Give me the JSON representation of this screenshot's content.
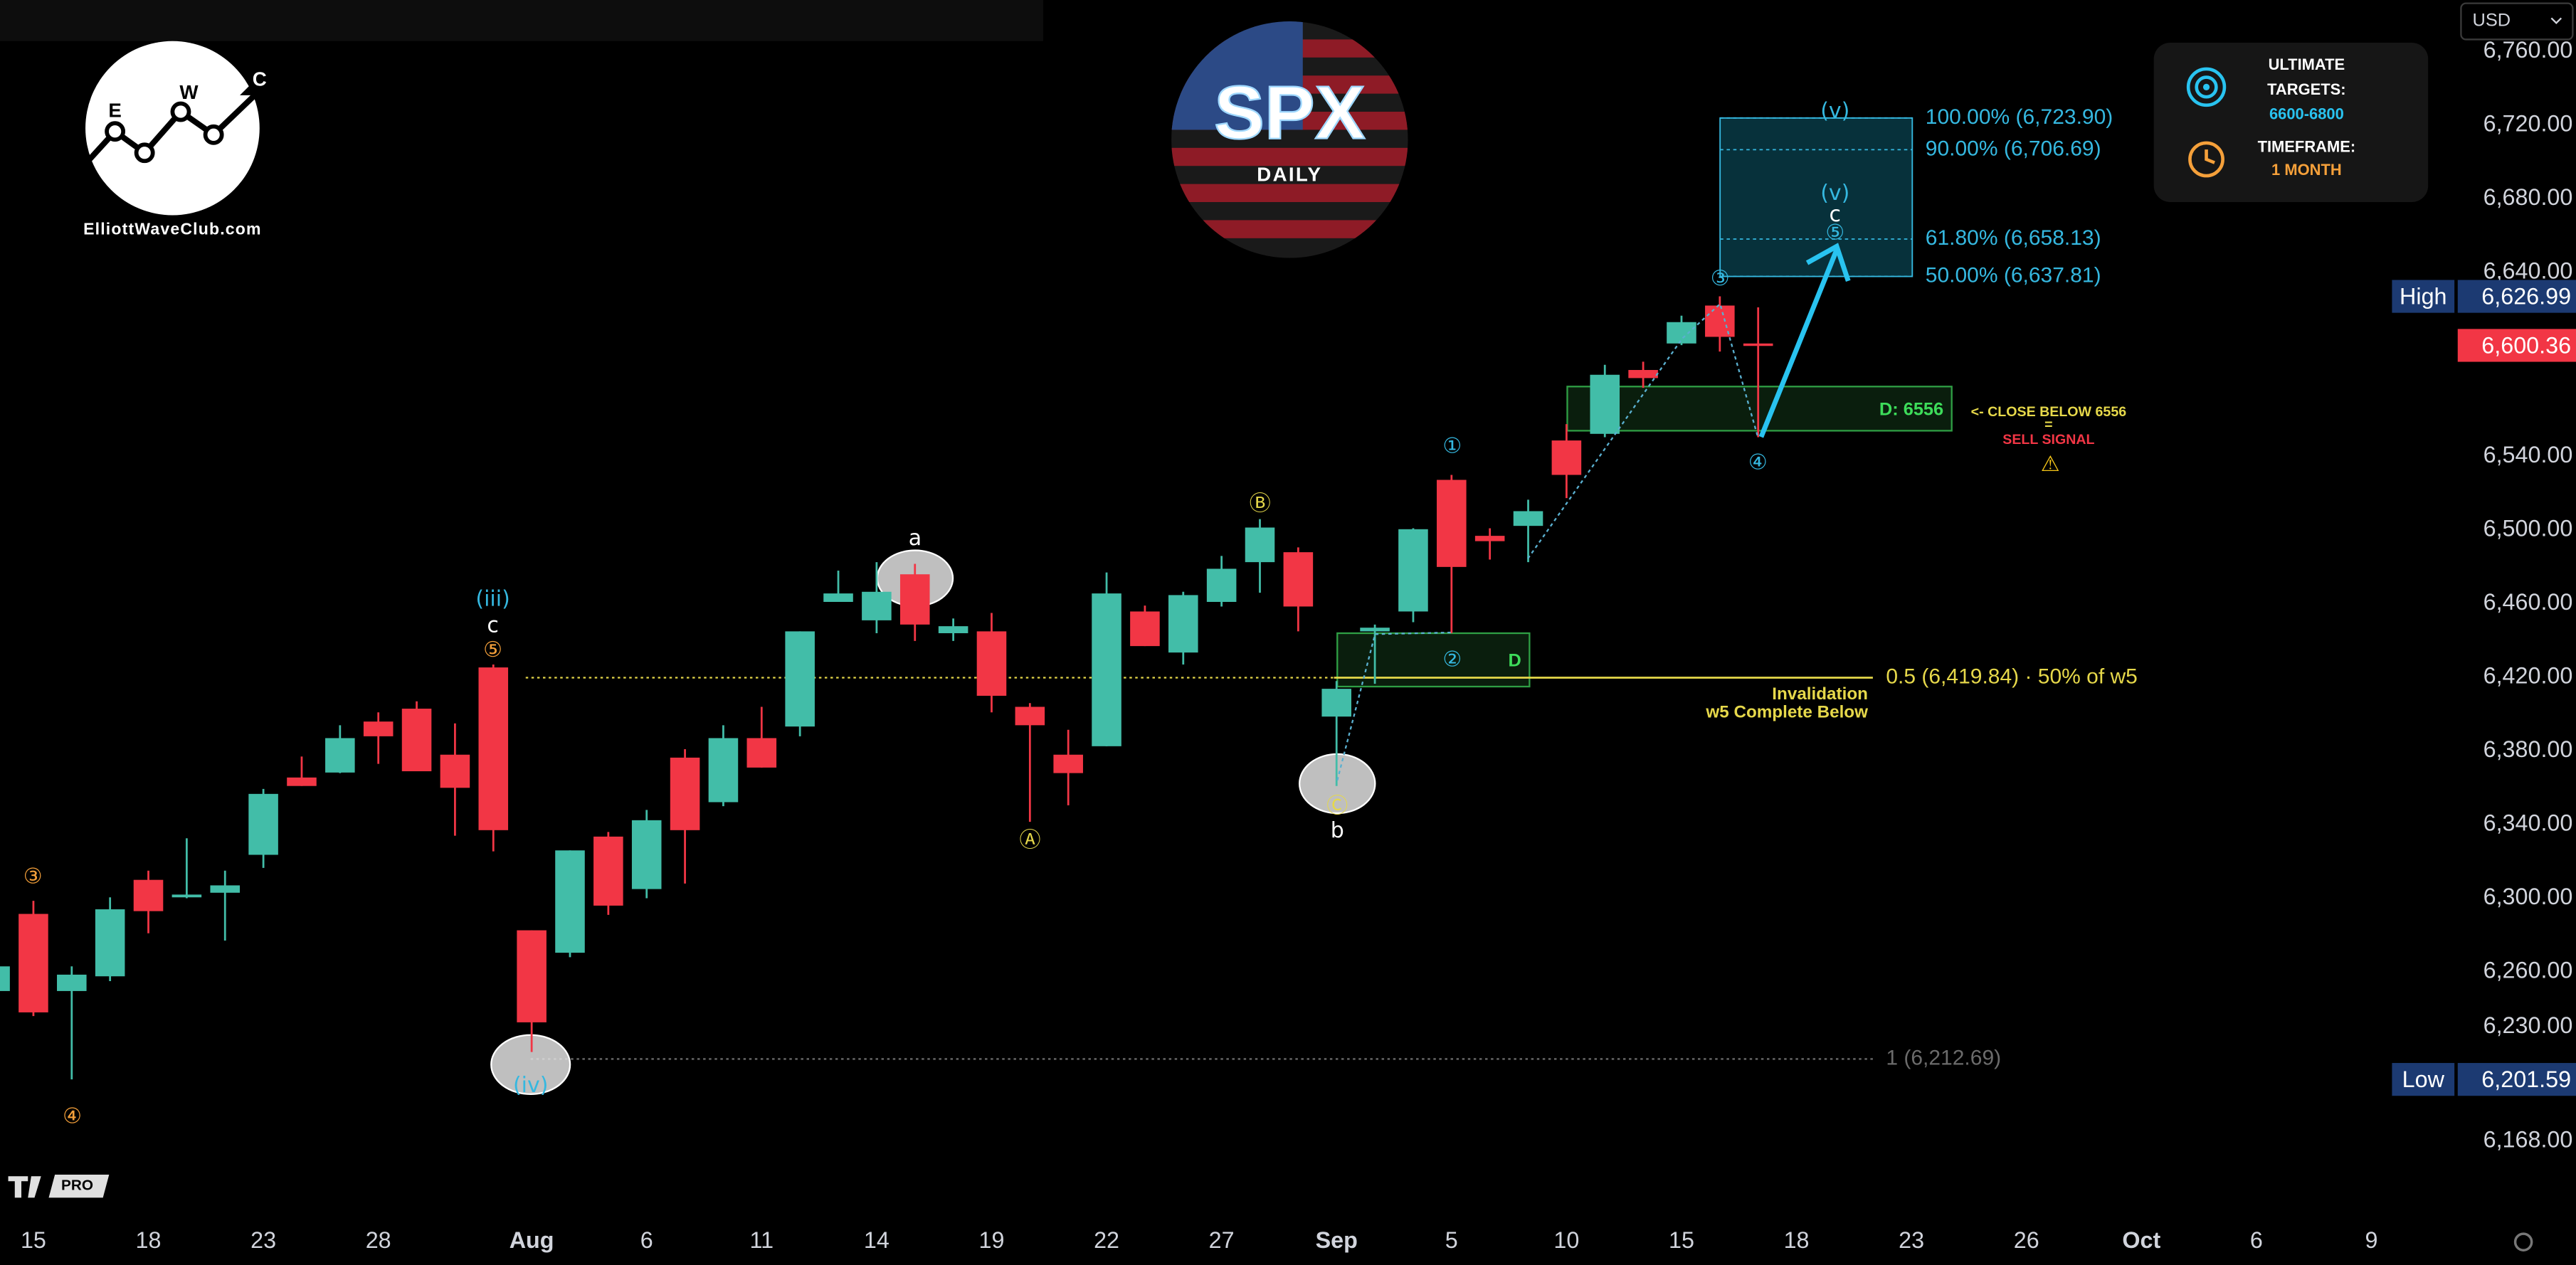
{
  "logo": {
    "letters": [
      "E",
      "W",
      "C"
    ],
    "site": "ElliottWaveClub.com"
  },
  "badge": {
    "title": "SPX",
    "subtitle": "DAILY"
  },
  "info": {
    "targets_label": [
      "ULTIMATE",
      "TARGETS:"
    ],
    "targets": "6600-6800",
    "timeframe_label": "TIMEFRAME:",
    "timeframe": "1 MONTH"
  },
  "currency": "USD",
  "platform_badge": "PRO",
  "chart_data": {
    "type": "candlestick",
    "categories": [
      null,
      "15",
      null,
      null,
      "18",
      null,
      null,
      "23",
      null,
      null,
      "28",
      null,
      null,
      null,
      "Aug",
      null,
      null,
      "6",
      null,
      null,
      "11",
      null,
      null,
      "14",
      null,
      null,
      "19",
      null,
      null,
      "22",
      null,
      null,
      "27",
      null,
      null,
      "Sep",
      null,
      null,
      "5",
      null,
      null,
      "10",
      null,
      null,
      "15",
      null,
      null,
      "18",
      null,
      null,
      "23",
      null,
      null,
      "26",
      null,
      null,
      "Oct",
      null,
      null,
      "6",
      null,
      null,
      "9"
    ],
    "open": [
      6249.6,
      6291.5,
      6249.6,
      6257.6,
      6310.0,
      6300.5,
      6303.0,
      6323.6,
      6365.6,
      6368.3,
      6396.0,
      6403.0,
      6378.0,
      6425.4,
      6282.6,
      6270.4,
      6333.5,
      6305.0,
      6376.4,
      6352.2,
      6387.0,
      6393.3,
      6461.0,
      6451.0,
      6476.0,
      6444.0,
      6445.0,
      6404.0,
      6378.0,
      6382.6,
      6455.8,
      6433.5,
      6461.0,
      6482.6,
      6488.0,
      6398.7,
      6445.0,
      6455.8,
      6527.3,
      6496.9,
      6502.3,
      6548.7,
      6552.3,
      6587.0,
      6601.4,
      6622.0,
      6601.4,
      null,
      null,
      null,
      null,
      null,
      null,
      null,
      null,
      null,
      null,
      null,
      null,
      null,
      null,
      null,
      null
    ],
    "high": [
      6265.0,
      6298.6,
      6263.0,
      6300.5,
      6315.0,
      6332.6,
      6315.0,
      6359.4,
      6377.0,
      6394.0,
      6401.0,
      6407.0,
      6395.0,
      6427.0,
      6282.6,
      6326.0,
      6336.0,
      6348.0,
      6381.0,
      6394.0,
      6404.0,
      6445.0,
      6478.0,
      6482.6,
      6481.7,
      6452.0,
      6455.0,
      6406.0,
      6391.5,
      6477.0,
      6459.0,
      6466.5,
      6486.0,
      6506.0,
      6490.6,
      6418.0,
      6448.7,
      6501.0,
      6530.0,
      6501.0,
      6516.5,
      6557.6,
      6589.8,
      6591.5,
      6616.5,
      6626.99,
      6621.0,
      null,
      null,
      null,
      null,
      null,
      null,
      null,
      null,
      null,
      null,
      null,
      null,
      null,
      null,
      null,
      null
    ],
    "low": [
      6248.0,
      6236.0,
      6201.59,
      6255.0,
      6281.0,
      6300.0,
      6277.0,
      6316.5,
      6361.0,
      6368.0,
      6373.0,
      6369.0,
      6334.0,
      6325.5,
      6216.5,
      6268.0,
      6291.0,
      6300.0,
      6308.0,
      6350.0,
      6371.0,
      6388.0,
      6461.0,
      6444.0,
      6439.8,
      6439.8,
      6401.0,
      6341.5,
      6350.5,
      6382.6,
      6437.0,
      6427.0,
      6458.5,
      6466.0,
      6445.0,
      6361.0,
      6416.5,
      6450.0,
      6444.0,
      6484.0,
      6482.6,
      6517.4,
      6550.5,
      6577.3,
      6600.5,
      6597.0,
      6550.5,
      null,
      null,
      null,
      null,
      null,
      null,
      null,
      null,
      null,
      null,
      null,
      null,
      null,
      null,
      null,
      null
    ],
    "close": [
      6263.0,
      6238.0,
      6258.5,
      6294.0,
      6293.0,
      6302.0,
      6307.0,
      6356.7,
      6361.0,
      6387.0,
      6388.0,
      6369.0,
      6360.0,
      6337.0,
      6232.6,
      6326.0,
      6296.0,
      6342.4,
      6337.0,
      6387.0,
      6371.0,
      6445.0,
      6465.6,
      6466.5,
      6448.7,
      6447.8,
      6410.0,
      6394.0,
      6368.0,
      6465.6,
      6437.0,
      6464.7,
      6479.0,
      6501.4,
      6458.5,
      6413.8,
      6447.0,
      6500.5,
      6480.0,
      6494.0,
      6510.3,
      6530.0,
      6584.4,
      6582.6,
      6613.0,
      6605.0,
      6600.36,
      null,
      null,
      null,
      null,
      null,
      null,
      null,
      null,
      null,
      null,
      null,
      null,
      null,
      null,
      null,
      null
    ],
    "up_color": "#42bda8",
    "down_color": "#f23645",
    "ylim": [
      6132,
      6788
    ],
    "yticks": [
      {
        "value": 6168,
        "label": "6,168.00"
      },
      {
        "value": 6230,
        "label": "6,230.00"
      },
      {
        "value": 6260,
        "label": "6,260.00"
      },
      {
        "value": 6300,
        "label": "6,300.00"
      },
      {
        "value": 6340,
        "label": "6,340.00"
      },
      {
        "value": 6380,
        "label": "6,380.00"
      },
      {
        "value": 6420,
        "label": "6,420.00"
      },
      {
        "value": 6460,
        "label": "6,460.00"
      },
      {
        "value": 6500,
        "label": "6,500.00"
      },
      {
        "value": 6540,
        "label": "6,540.00"
      },
      {
        "value": 6640,
        "label": "6,640.00"
      },
      {
        "value": 6680,
        "label": "6,680.00"
      },
      {
        "value": 6720,
        "label": "6,720.00"
      },
      {
        "value": 6760,
        "label": "6,760.00"
      }
    ],
    "grid": false,
    "price_tags": {
      "names": [
        "High",
        null,
        "Low"
      ],
      "values": [
        6626.99,
        6600.36,
        6201.59
      ],
      "value_labels": [
        "6,626.99",
        "6,600.36",
        "6,201.59"
      ],
      "colors": [
        "#1c3a72",
        "#f23645",
        "#1c3a72"
      ]
    },
    "target_levels": [
      {
        "value": 6723.9,
        "label": "100.00% (6,723.90)"
      },
      {
        "value": 6706.69,
        "label": "90.00% (6,706.69)"
      },
      {
        "value": 6658.13,
        "label": "61.80% (6,658.13)"
      },
      {
        "value": 6637.81,
        "label": "50.00% (6,637.81)"
      }
    ],
    "target_color": "#35b8e0",
    "zones": [
      {
        "label": "D: 6556",
        "low": 6554,
        "high": 6578
      },
      {
        "label": "D",
        "low": 6415,
        "high": 6444
      }
    ],
    "zone_color": "#2f9e44",
    "levels": [
      {
        "value": 6419.84,
        "label": "0.5 (6,419.84) · 50% of w5",
        "color": "#e6d84a"
      },
      {
        "value": 6212.69,
        "label": "1 (6,212.69)",
        "color": "#6b6b6b"
      }
    ],
    "invalidation_note": [
      "Invalidation",
      "w5 Complete Below"
    ],
    "sell_note": {
      "lines": [
        "<- CLOSE BELOW 6556",
        "="
      ],
      "signal": "SELL SIGNAL",
      "icon": "⚠"
    },
    "wave_labels": [
      {
        "text": "③",
        "color": "#f5a03a"
      },
      {
        "text": "④",
        "color": "#f5a03a"
      },
      {
        "text": "(iii)",
        "color": "#35b8e0"
      },
      {
        "text": "c",
        "color": "#ffffff"
      },
      {
        "text": "⑤",
        "color": "#f5a03a"
      },
      {
        "text": "(iv)",
        "color": "#35b8e0"
      },
      {
        "text": "a",
        "color": "#ffffff"
      },
      {
        "text": "Ⓐ",
        "color": "#e6d84a"
      },
      {
        "text": "Ⓑ",
        "color": "#e6d84a"
      },
      {
        "text": "Ⓒ",
        "color": "#e6d84a"
      },
      {
        "text": "b",
        "color": "#ffffff"
      },
      {
        "text": "①",
        "color": "#35b8e0"
      },
      {
        "text": "②",
        "color": "#35b8e0"
      },
      {
        "text": "③",
        "color": "#35b8e0"
      },
      {
        "text": "④",
        "color": "#35b8e0"
      },
      {
        "text": "(v)",
        "color": "#35b8e0"
      },
      {
        "text": "(v)",
        "color": "#35b8e0"
      },
      {
        "text": "c",
        "color": "#ffffff"
      },
      {
        "text": "⑤",
        "color": "#35b8e0"
      }
    ]
  }
}
